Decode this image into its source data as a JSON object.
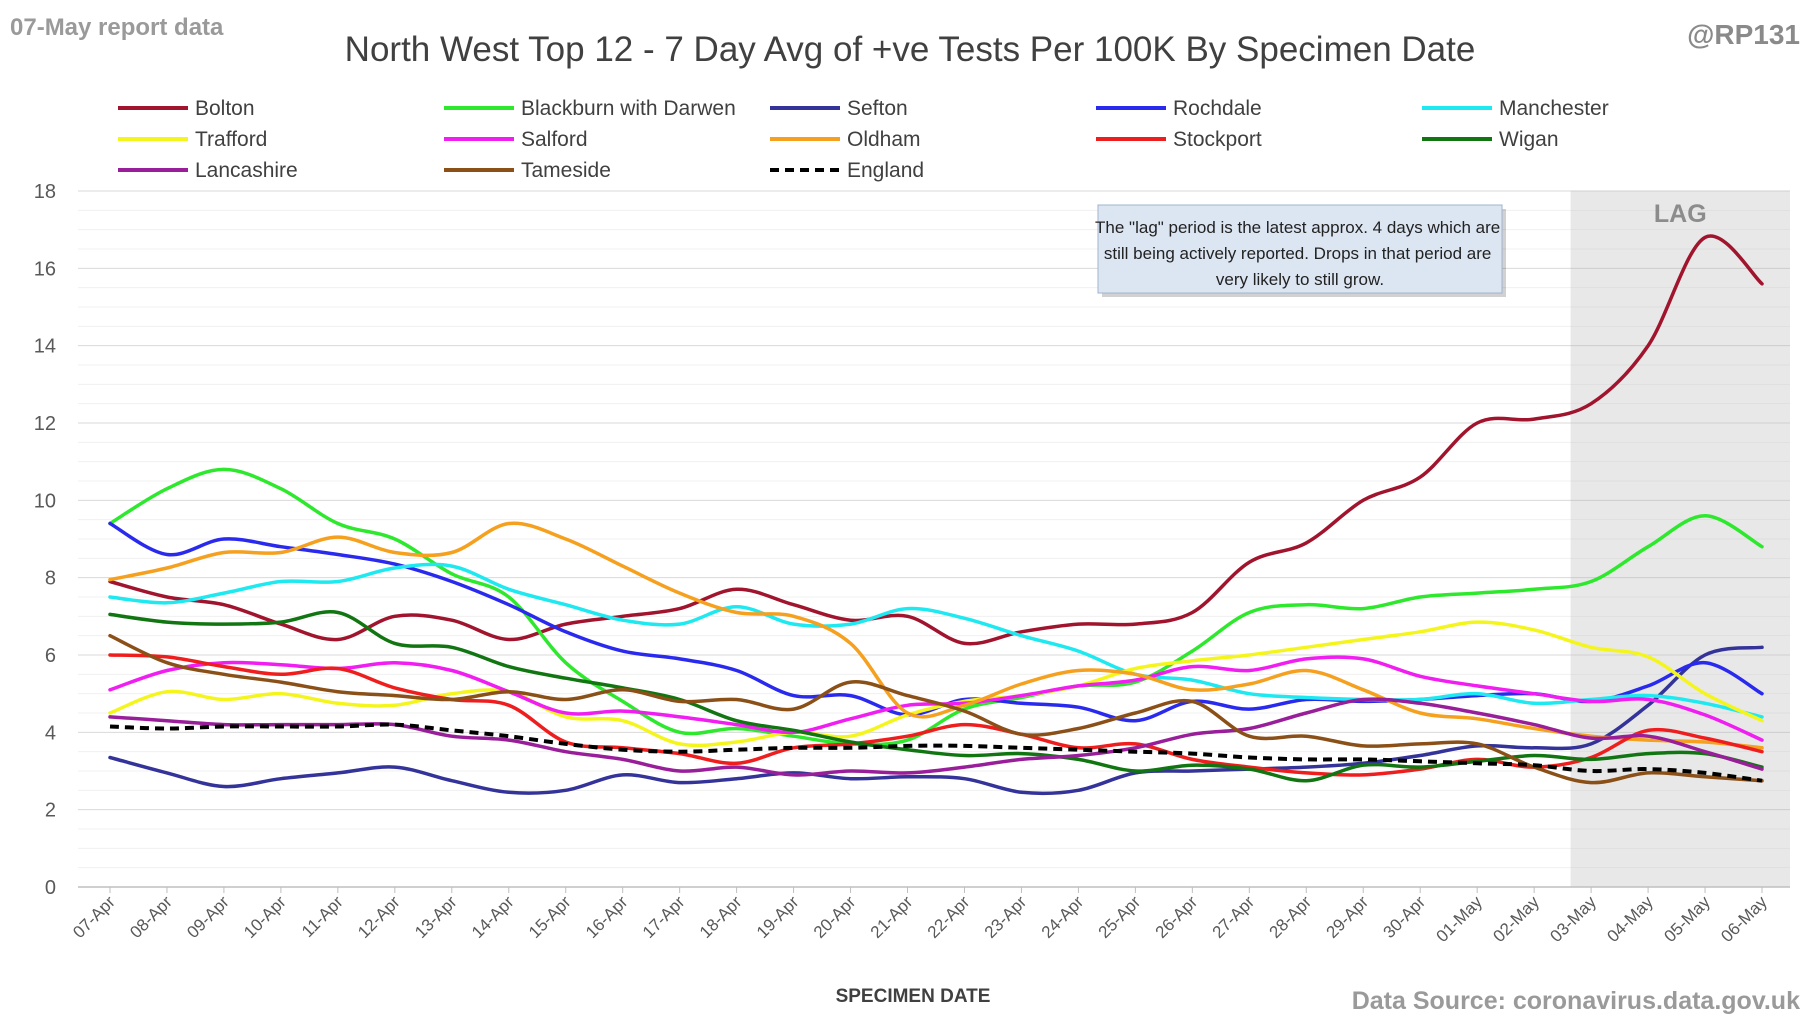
{
  "header": {
    "report_tag": "07-May report data",
    "handle": "@RP131",
    "source": "Data Source: coronavirus.data.gov.uk"
  },
  "chart_data": {
    "type": "line",
    "title": "North West Top 12 - 7 Day Avg of +ve Tests Per 100K By Specimen Date",
    "xlabel": "SPECIMEN DATE",
    "ylabel": "",
    "ylim": [
      0,
      18
    ],
    "yticks": [
      0,
      2,
      4,
      6,
      8,
      10,
      12,
      14,
      16,
      18
    ],
    "grid": true,
    "legend_position": "top",
    "categories": [
      "07-Apr",
      "08-Apr",
      "09-Apr",
      "10-Apr",
      "11-Apr",
      "12-Apr",
      "13-Apr",
      "14-Apr",
      "15-Apr",
      "16-Apr",
      "17-Apr",
      "18-Apr",
      "19-Apr",
      "20-Apr",
      "21-Apr",
      "22-Apr",
      "23-Apr",
      "24-Apr",
      "25-Apr",
      "26-Apr",
      "27-Apr",
      "28-Apr",
      "29-Apr",
      "30-Apr",
      "01-May",
      "02-May",
      "03-May",
      "04-May",
      "05-May",
      "06-May"
    ],
    "lag_region": {
      "label": "LAG",
      "from": "03-May",
      "to": "06-May"
    },
    "annotation": "The \"lag\" period is the latest approx. 4 days which are still being actively reported.  Drops in that period are very likely to still grow.",
    "series": [
      {
        "name": "Bolton",
        "color": "#a0142d",
        "dashed": false,
        "values": [
          7.9,
          7.5,
          7.3,
          6.8,
          6.4,
          7.0,
          6.9,
          6.4,
          6.8,
          7.0,
          7.2,
          7.7,
          7.3,
          6.9,
          7.0,
          6.3,
          6.6,
          6.8,
          6.8,
          7.1,
          8.4,
          8.9,
          10.0,
          10.6,
          12.0,
          12.1,
          12.5,
          14.0,
          16.8,
          15.6
        ]
      },
      {
        "name": "Blackburn with Darwen",
        "color": "#2ee82e",
        "dashed": false,
        "values": [
          9.4,
          10.3,
          10.8,
          10.3,
          9.4,
          9.0,
          8.1,
          7.5,
          5.8,
          4.8,
          4.0,
          4.1,
          3.9,
          3.7,
          3.8,
          4.6,
          4.9,
          5.2,
          5.3,
          6.1,
          7.1,
          7.3,
          7.2,
          7.5,
          7.6,
          7.7,
          7.9,
          8.8,
          9.6,
          8.8
        ]
      },
      {
        "name": "Sefton",
        "color": "#333399",
        "dashed": false,
        "values": [
          3.35,
          2.95,
          2.6,
          2.8,
          2.95,
          3.1,
          2.75,
          2.45,
          2.5,
          2.9,
          2.7,
          2.8,
          2.95,
          2.8,
          2.85,
          2.8,
          2.45,
          2.5,
          2.95,
          3.0,
          3.05,
          3.1,
          3.2,
          3.4,
          3.65,
          3.6,
          3.7,
          4.7,
          6.0,
          6.2
        ]
      },
      {
        "name": "Rochdale",
        "color": "#2a2aee",
        "dashed": false,
        "values": [
          9.4,
          8.6,
          9.0,
          8.8,
          8.6,
          8.35,
          7.9,
          7.3,
          6.6,
          6.1,
          5.9,
          5.6,
          4.95,
          4.95,
          4.45,
          4.85,
          4.75,
          4.65,
          4.3,
          4.8,
          4.6,
          4.85,
          4.8,
          4.85,
          4.95,
          5.0,
          4.8,
          5.2,
          5.8,
          5.0
        ]
      },
      {
        "name": "Manchester",
        "color": "#1ee8f0",
        "dashed": false,
        "values": [
          7.5,
          7.35,
          7.6,
          7.9,
          7.9,
          8.25,
          8.3,
          7.7,
          7.3,
          6.9,
          6.8,
          7.25,
          6.8,
          6.8,
          7.2,
          6.95,
          6.5,
          6.1,
          5.5,
          5.35,
          5.0,
          4.9,
          4.85,
          4.85,
          5.0,
          4.75,
          4.85,
          4.95,
          4.75,
          4.4
        ]
      },
      {
        "name": "Trafford",
        "color": "#f5f51e",
        "dashed": false,
        "values": [
          4.5,
          5.05,
          4.85,
          5.0,
          4.75,
          4.7,
          5.0,
          5.05,
          4.4,
          4.3,
          3.7,
          3.75,
          4.0,
          3.9,
          4.45,
          4.8,
          4.95,
          5.2,
          5.65,
          5.85,
          6.0,
          6.2,
          6.4,
          6.6,
          6.85,
          6.65,
          6.2,
          5.95,
          5.0,
          4.3
        ]
      },
      {
        "name": "Salford",
        "color": "#f01ef0",
        "dashed": false,
        "values": [
          5.1,
          5.6,
          5.8,
          5.75,
          5.65,
          5.8,
          5.6,
          5.05,
          4.5,
          4.55,
          4.4,
          4.2,
          4.0,
          4.35,
          4.7,
          4.75,
          4.95,
          5.2,
          5.35,
          5.7,
          5.6,
          5.9,
          5.9,
          5.45,
          5.2,
          5.0,
          4.8,
          4.85,
          4.45,
          3.8
        ]
      },
      {
        "name": "Oldham",
        "color": "#f5a01e",
        "dashed": false,
        "values": [
          7.95,
          8.25,
          8.65,
          8.65,
          9.05,
          8.65,
          8.65,
          9.4,
          9.0,
          8.3,
          7.6,
          7.1,
          7.0,
          6.3,
          4.5,
          4.7,
          5.25,
          5.6,
          5.5,
          5.1,
          5.25,
          5.6,
          5.1,
          4.5,
          4.35,
          4.1,
          3.9,
          3.8,
          3.75,
          3.6
        ]
      },
      {
        "name": "Stockport",
        "color": "#ee1e1e",
        "dashed": false,
        "values": [
          6.0,
          5.95,
          5.7,
          5.5,
          5.65,
          5.15,
          4.85,
          4.7,
          3.75,
          3.6,
          3.45,
          3.2,
          3.6,
          3.7,
          3.9,
          4.2,
          3.95,
          3.6,
          3.7,
          3.3,
          3.1,
          2.95,
          2.9,
          3.05,
          3.3,
          3.1,
          3.35,
          4.05,
          3.85,
          3.5
        ]
      },
      {
        "name": "Wigan",
        "color": "#117511",
        "dashed": false,
        "values": [
          7.05,
          6.85,
          6.8,
          6.85,
          7.1,
          6.3,
          6.2,
          5.7,
          5.4,
          5.15,
          4.85,
          4.3,
          4.05,
          3.75,
          3.55,
          3.4,
          3.45,
          3.3,
          3.0,
          3.15,
          3.05,
          2.75,
          3.15,
          3.1,
          3.25,
          3.4,
          3.3,
          3.45,
          3.45,
          3.1
        ]
      },
      {
        "name": "Lancashire",
        "color": "#991e99",
        "dashed": false,
        "values": [
          4.4,
          4.3,
          4.2,
          4.2,
          4.2,
          4.2,
          3.9,
          3.8,
          3.5,
          3.3,
          3.0,
          3.1,
          2.9,
          3.0,
          2.95,
          3.1,
          3.3,
          3.4,
          3.6,
          3.95,
          4.1,
          4.5,
          4.85,
          4.75,
          4.5,
          4.2,
          3.85,
          3.9,
          3.5,
          3.05
        ]
      },
      {
        "name": "Tameside",
        "color": "#8a5017",
        "dashed": false,
        "values": [
          6.5,
          5.8,
          5.5,
          5.3,
          5.05,
          4.95,
          4.85,
          5.05,
          4.85,
          5.1,
          4.8,
          4.85,
          4.6,
          5.3,
          4.95,
          4.55,
          3.95,
          4.1,
          4.5,
          4.8,
          3.9,
          3.9,
          3.65,
          3.7,
          3.7,
          3.1,
          2.7,
          2.95,
          2.85,
          2.75
        ]
      },
      {
        "name": "England",
        "color": "#000000",
        "dashed": true,
        "values": [
          4.15,
          4.1,
          4.15,
          4.15,
          4.15,
          4.2,
          4.05,
          3.9,
          3.7,
          3.55,
          3.5,
          3.55,
          3.6,
          3.6,
          3.65,
          3.65,
          3.6,
          3.55,
          3.5,
          3.45,
          3.35,
          3.3,
          3.3,
          3.25,
          3.2,
          3.15,
          3.0,
          3.05,
          2.95,
          2.75
        ]
      }
    ]
  }
}
